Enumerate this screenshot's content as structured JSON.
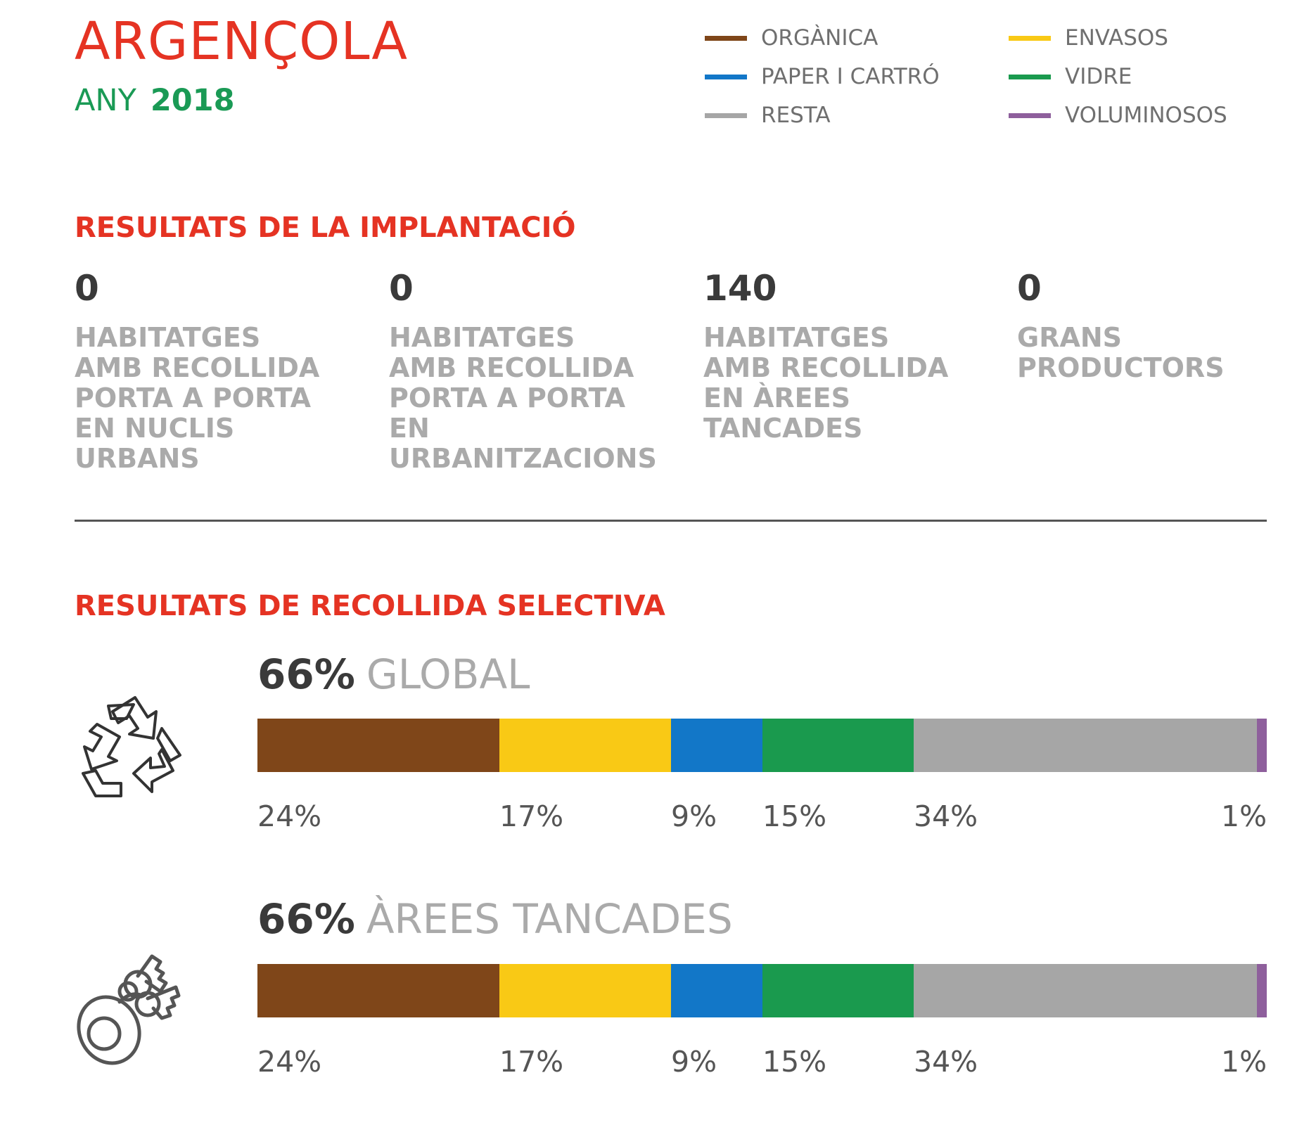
{
  "header": {
    "town": "ARGENÇOLA",
    "year_label": "ANY",
    "year_value": "2018"
  },
  "legend": [
    {
      "label": "ORGÀNICA",
      "color": "#7f4619"
    },
    {
      "label": "ENVASOS",
      "color": "#f9c915"
    },
    {
      "label": "PAPER I CARTRÓ",
      "color": "#1277c8"
    },
    {
      "label": "VIDRE",
      "color": "#1a9a4e"
    },
    {
      "label": "RESTA",
      "color": "#a6a6a6"
    },
    {
      "label": "VOLUMINOSOS",
      "color": "#8e5f9c"
    }
  ],
  "implantacio": {
    "title": "RESULTATS DE LA IMPLANTACIÓ",
    "stats": [
      {
        "value": "0",
        "label": [
          "HABITATGES",
          "AMB RECOLLIDA",
          "PORTA A PORTA",
          "EN NUCLIS",
          "URBANS"
        ]
      },
      {
        "value": "0",
        "label": [
          "HABITATGES",
          "AMB RECOLLIDA",
          "PORTA A PORTA",
          "EN",
          "URBANITZACIONS"
        ]
      },
      {
        "value": "140",
        "label": [
          "HABITATGES",
          "AMB RECOLLIDA",
          "EN ÀREES",
          "TANCADES"
        ]
      },
      {
        "value": "0",
        "label": [
          "GRANS",
          "PRODUCTORS"
        ]
      }
    ]
  },
  "selectiva": {
    "title": "RESULTATS DE RECOLLIDA SELECTIVA"
  },
  "icons": {
    "global": "recycle-icon",
    "arees": "keys-icon"
  },
  "chart_data": [
    {
      "type": "bar",
      "stacked": true,
      "orientation": "horizontal",
      "total_label": "66%",
      "name": "GLOBAL",
      "series": [
        {
          "name": "ORGÀNICA",
          "value": 24,
          "label": "24%",
          "color": "#7f4619"
        },
        {
          "name": "ENVASOS",
          "value": 17,
          "label": "17%",
          "color": "#f9c915"
        },
        {
          "name": "PAPER I CARTRÓ",
          "value": 9,
          "label": "9%",
          "color": "#1277c8"
        },
        {
          "name": "VIDRE",
          "value": 15,
          "label": "15%",
          "color": "#1a9a4e"
        },
        {
          "name": "RESTA",
          "value": 34,
          "label": "34%",
          "color": "#a6a6a6"
        },
        {
          "name": "VOLUMINOSOS",
          "value": 1,
          "label": "1%",
          "color": "#8e5f9c"
        }
      ]
    },
    {
      "type": "bar",
      "stacked": true,
      "orientation": "horizontal",
      "total_label": "66%",
      "name": "ÀREES TANCADES",
      "series": [
        {
          "name": "ORGÀNICA",
          "value": 24,
          "label": "24%",
          "color": "#7f4619"
        },
        {
          "name": "ENVASOS",
          "value": 17,
          "label": "17%",
          "color": "#f9c915"
        },
        {
          "name": "PAPER I CARTRÓ",
          "value": 9,
          "label": "9%",
          "color": "#1277c8"
        },
        {
          "name": "VIDRE",
          "value": 15,
          "label": "15%",
          "color": "#1a9a4e"
        },
        {
          "name": "RESTA",
          "value": 34,
          "label": "34%",
          "color": "#a6a6a6"
        },
        {
          "name": "VOLUMINOSOS",
          "value": 1,
          "label": "1%",
          "color": "#8e5f9c"
        }
      ]
    }
  ]
}
